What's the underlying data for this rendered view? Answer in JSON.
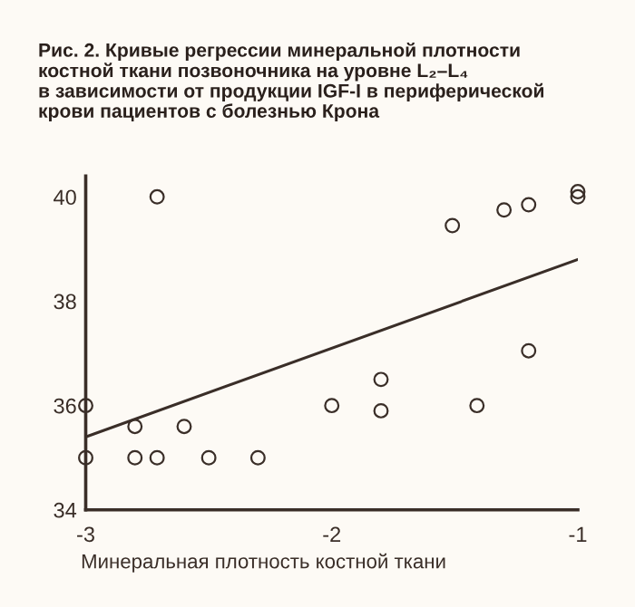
{
  "chart_data": {
    "type": "scatter",
    "title": "Рис. 2. Кривые регрессии минеральной плотности\nкостной ткани позвоночника на уровне L₂–L₄\nв зависимости от продукции IGF-I в периферической\nкрови пациентов с болезнью Крона",
    "xlabel": "Минеральная плотность костной ткани",
    "xlim": [
      -3,
      -1
    ],
    "xticks": [
      -3,
      -2,
      -1
    ],
    "ylim": [
      34,
      40.4
    ],
    "yticks": [
      34,
      36,
      38,
      40
    ],
    "grid": false,
    "series": [
      {
        "marker": "circle",
        "color": "#3a2e28",
        "x": [
          -3,
          -3,
          -2.8,
          -2.8,
          -2.71,
          -2.71,
          -2.6,
          -2.5,
          -2.3,
          -2.0,
          -1.8,
          -1.8,
          -1.51,
          -1.41,
          -1.3,
          -1.2,
          -1.2,
          -1.0,
          -1.0
        ],
        "values": [
          36.0,
          35.0,
          35.6,
          35.0,
          40.0,
          35.0,
          35.6,
          35.0,
          35.0,
          36.0,
          36.5,
          35.9,
          39.45,
          36.0,
          39.75,
          39.85,
          37.05,
          40.1,
          40.0
        ]
      },
      {
        "type": "line",
        "marker": "none",
        "color": "#3a2e28",
        "x": [
          -3,
          -1
        ],
        "values": [
          35.4,
          38.8
        ]
      }
    ]
  }
}
